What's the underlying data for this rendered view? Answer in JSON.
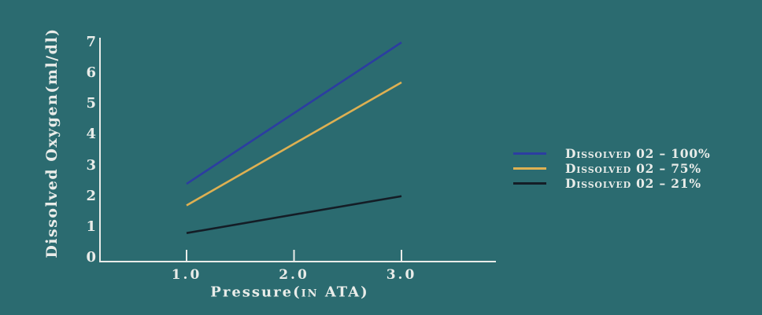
{
  "page": {
    "background_color": "#2b6b70",
    "text_color": "#e9ece9",
    "axis_color": "#e9ece9"
  },
  "chart_data": {
    "type": "line",
    "title": "",
    "xlabel": "Pressure(in ATA)",
    "xlabel_parts": [
      {
        "text": "Pressure(",
        "small_caps": false
      },
      {
        "text": "in",
        "small_caps": true
      },
      {
        "text": " ATA)",
        "small_caps": false
      }
    ],
    "ylabel": "Dissolved Oxygen(ml/dl)",
    "x_ticks": [
      1.0,
      2.0,
      3.0
    ],
    "x_tick_labels": [
      "1.0",
      "2.0",
      "3.0"
    ],
    "y_ticks": [
      0,
      1,
      2,
      3,
      4,
      5,
      6,
      7
    ],
    "xlim": [
      0.2,
      3.9
    ],
    "ylim": [
      -0.15,
      7.3
    ],
    "grid": false,
    "legend_position": "center-right",
    "series": [
      {
        "id": "100",
        "name": "Dissolved 02 – 100%",
        "color": "#2c3da1",
        "points": [
          [
            1.0,
            2.4
          ],
          [
            3.0,
            7.0
          ]
        ]
      },
      {
        "id": "75",
        "name": "Dissolved 02 – 75%",
        "color": "#deb052",
        "points": [
          [
            1.0,
            1.7
          ],
          [
            3.0,
            5.7
          ]
        ]
      },
      {
        "id": "21",
        "name": "Dissolved 02 – 21%",
        "color": "#141d26",
        "points": [
          [
            1.0,
            0.8
          ],
          [
            3.0,
            2.0
          ]
        ]
      }
    ]
  }
}
